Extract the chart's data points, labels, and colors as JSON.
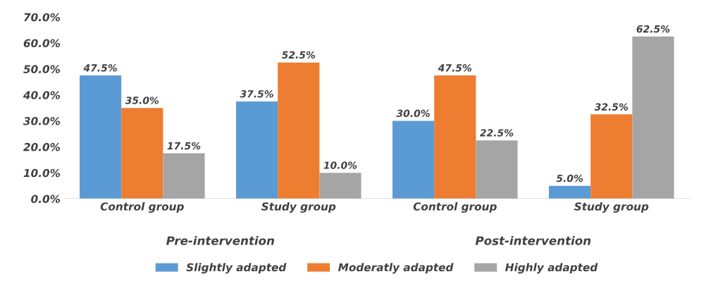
{
  "chart_data": {
    "type": "bar",
    "categories": [
      "Control group",
      "Study group",
      "Control group",
      "Study group"
    ],
    "series": [
      {
        "name": "Slightly adapted",
        "color": "#5b9bd5",
        "values": [
          47.5,
          37.5,
          30.0,
          5.0
        ],
        "value_labels": [
          "47.5%",
          "37.5%",
          "30.0%",
          "5.0%"
        ]
      },
      {
        "name": "Moderatly adapted",
        "color": "#ed7d31",
        "values": [
          35.0,
          52.5,
          47.5,
          32.5
        ],
        "value_labels": [
          "35.0%",
          "52.5%",
          "47.5%",
          "32.5%"
        ]
      },
      {
        "name": "Highly adapted",
        "color": "#a5a5a5",
        "values": [
          17.5,
          10.0,
          22.5,
          62.5
        ],
        "value_labels": [
          "17.5%",
          "10.0%",
          "22.5%",
          "62.5%"
        ]
      }
    ],
    "ylim": [
      0,
      70
    ],
    "yticks": [
      {
        "value": 0,
        "label": "0.0%"
      },
      {
        "value": 10,
        "label": "10.0%"
      },
      {
        "value": 20,
        "label": "20.0%"
      },
      {
        "value": 30,
        "label": "30.0%"
      },
      {
        "value": 40,
        "label": "40.0%"
      },
      {
        "value": 50,
        "label": "50.0%"
      },
      {
        "value": 60,
        "label": "60.0%"
      },
      {
        "value": 70,
        "label": "70.0%"
      }
    ],
    "annotations": [
      "Pre-intervention",
      "Post-intervention"
    ],
    "legend": "bottom",
    "grid": false
  }
}
